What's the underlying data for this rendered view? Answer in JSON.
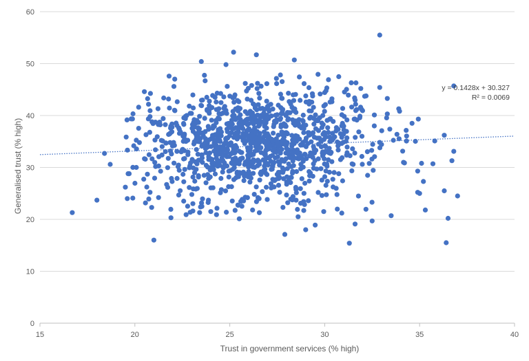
{
  "chart_data": {
    "type": "scatter",
    "xlabel": "Trust in government services (% high)",
    "ylabel": "Generalised trust (% high)",
    "xlim": [
      15,
      40
    ],
    "ylim": [
      0,
      60
    ],
    "x_ticks": [
      "15",
      "20",
      "25",
      "30",
      "35",
      "40"
    ],
    "y_ticks": [
      "0",
      "10",
      "20",
      "30",
      "40",
      "50",
      "60"
    ],
    "grid": "horizontal",
    "legend": "none",
    "point_color": "#4472c4",
    "trendline": {
      "type": "linear",
      "slope": 0.1428,
      "intercept": 30.327,
      "equation": "y = 0.1428x + 30.327",
      "r_squared": "R² = 0.0069"
    },
    "outlier_points": [
      [
        16.7,
        21.3
      ],
      [
        18.0,
        23.7
      ],
      [
        18.4,
        32.7
      ],
      [
        18.7,
        30.6
      ],
      [
        19.5,
        26.2
      ],
      [
        19.7,
        28.8
      ],
      [
        19.6,
        24.0
      ],
      [
        20.2,
        41.6
      ],
      [
        20.5,
        44.6
      ],
      [
        20.9,
        38.8
      ],
      [
        21.0,
        16.0
      ],
      [
        20.8,
        25.2
      ],
      [
        21.9,
        20.3
      ],
      [
        22.1,
        47.0
      ],
      [
        23.5,
        50.4
      ],
      [
        24.8,
        49.8
      ],
      [
        25.2,
        52.2
      ],
      [
        26.4,
        51.7
      ],
      [
        28.4,
        50.7
      ],
      [
        32.9,
        55.5
      ],
      [
        25.5,
        20.1
      ],
      [
        27.9,
        17.1
      ],
      [
        29.0,
        18.0
      ],
      [
        29.5,
        18.9
      ],
      [
        31.3,
        15.4
      ],
      [
        31.6,
        19.1
      ],
      [
        32.5,
        19.7
      ],
      [
        33.5,
        20.7
      ],
      [
        34.9,
        25.2
      ],
      [
        35.0,
        25.0
      ],
      [
        35.2,
        27.3
      ],
      [
        35.3,
        21.8
      ],
      [
        35.7,
        30.7
      ],
      [
        35.8,
        35.1
      ],
      [
        36.3,
        36.2
      ],
      [
        36.3,
        25.5
      ],
      [
        36.4,
        15.5
      ],
      [
        36.5,
        20.2
      ],
      [
        36.7,
        31.3
      ],
      [
        36.8,
        33.1
      ],
      [
        36.8,
        45.7
      ],
      [
        37.0,
        24.5
      ],
      [
        34.9,
        29.3
      ],
      [
        35.1,
        30.8
      ],
      [
        34.6,
        38.5
      ],
      [
        33.9,
        41.3
      ],
      [
        33.3,
        40.3
      ],
      [
        31.4,
        46.3
      ],
      [
        30.2,
        46.9
      ],
      [
        29.9,
        40.0
      ],
      [
        31.9,
        45.2
      ],
      [
        32.9,
        45.4
      ],
      [
        22.7,
        20.9
      ],
      [
        23.0,
        24.8
      ],
      [
        24.0,
        21.5
      ],
      [
        24.3,
        20.9
      ],
      [
        26.2,
        21.8
      ],
      [
        27.8,
        22.3
      ],
      [
        28.6,
        20.5
      ],
      [
        30.9,
        21.2
      ]
    ],
    "cloud": {
      "count": 1150,
      "center_x": 26.5,
      "center_y": 34.5,
      "sd_x": 3.0,
      "sd_y": 5.2
    }
  }
}
